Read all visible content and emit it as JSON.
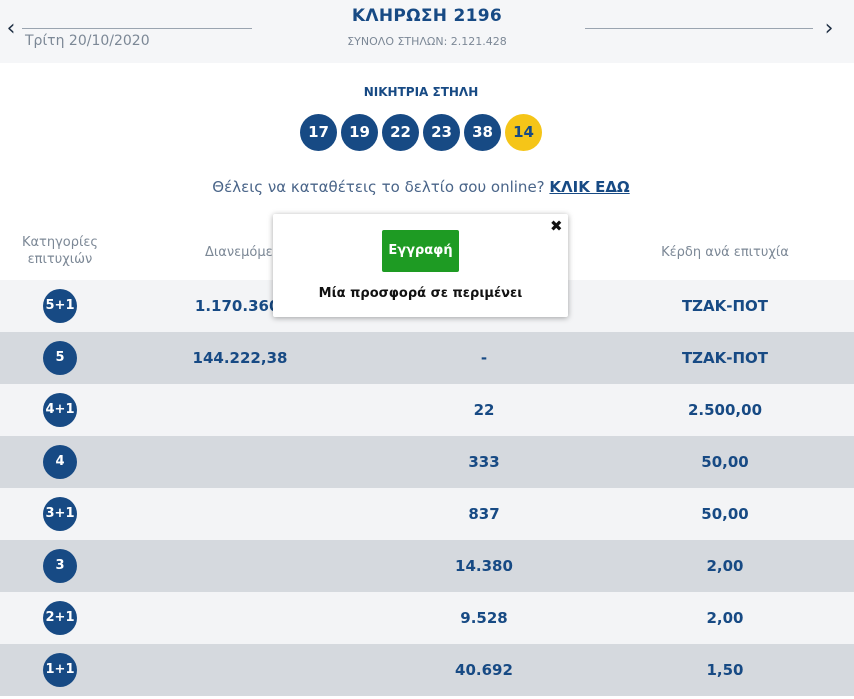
{
  "header": {
    "title": "ΚΛΗΡΩΣΗ 2196",
    "total_columns": "ΣΥΝΟΛΟ ΣΤΗΛΩΝ: 2.121.428",
    "date": "Τρίτη 20/10/2020",
    "prev_icon": "chevron-left-icon",
    "next_icon": "chevron-right-icon"
  },
  "winning": {
    "label": "ΝΙΚΗΤΡΙΑ ΣΤΗΛΗ",
    "numbers": [
      "17",
      "19",
      "22",
      "23",
      "38"
    ],
    "joker": "14",
    "colors": {
      "ball": "#174a84",
      "joker": "#f5c518"
    }
  },
  "promo": {
    "text": "Θέλεις να καταθέτεις το δελτίο σου online?",
    "link": "ΚΛΙΚ ΕΔΩ"
  },
  "table": {
    "headers": {
      "category": "Κατηγορίες επιτυχιών",
      "distributed": "Διανεμόμεν",
      "prize": "Κέρδη ανά επιτυχία"
    },
    "rows": [
      {
        "cat": "5+1",
        "dist": "1.170.360,",
        "wins": "",
        "prize": "ΤΖΑΚ-ΠΟΤ"
      },
      {
        "cat": "5",
        "dist": "144.222,38",
        "wins": "-",
        "prize": "ΤΖΑΚ-ΠΟΤ"
      },
      {
        "cat": "4+1",
        "dist": "",
        "wins": "22",
        "prize": "2.500,00"
      },
      {
        "cat": "4",
        "dist": "",
        "wins": "333",
        "prize": "50,00"
      },
      {
        "cat": "3+1",
        "dist": "",
        "wins": "837",
        "prize": "50,00"
      },
      {
        "cat": "3",
        "dist": "",
        "wins": "14.380",
        "prize": "2,00"
      },
      {
        "cat": "2+1",
        "dist": "",
        "wins": "9.528",
        "prize": "2,00"
      },
      {
        "cat": "1+1",
        "dist": "",
        "wins": "40.692",
        "prize": "1,50"
      }
    ]
  },
  "popup": {
    "button": "Εγγραφή",
    "text": "Μία προσφορά σε περιμένει",
    "close_icon": "close-icon",
    "button_color": "#1e9b23"
  }
}
